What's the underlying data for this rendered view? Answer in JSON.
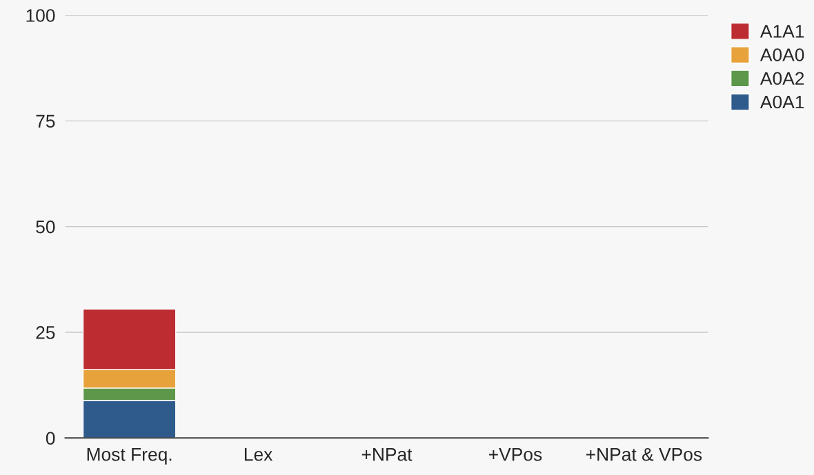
{
  "chart_data": {
    "type": "bar",
    "stacked": true,
    "categories": [
      "Most Freq.",
      "Lex",
      "+NPat",
      "+VPos",
      "+NPat & VPos"
    ],
    "series": [
      {
        "name": "A0A1",
        "color": "#2e5a8c",
        "values": [
          8.9,
          null,
          null,
          null,
          null
        ]
      },
      {
        "name": "A0A2",
        "color": "#5c974a",
        "values": [
          2.9,
          null,
          null,
          null,
          null
        ]
      },
      {
        "name": "A0A0",
        "color": "#e7a23c",
        "values": [
          4.4,
          null,
          null,
          null,
          null
        ]
      },
      {
        "name": "A1A1",
        "color": "#bc2c30",
        "values": [
          14.3,
          null,
          null,
          null,
          null
        ]
      }
    ],
    "ylim": [
      0,
      100
    ],
    "yticks": [
      0,
      25,
      50,
      75,
      100
    ],
    "grid": "y",
    "legend": "top right"
  }
}
